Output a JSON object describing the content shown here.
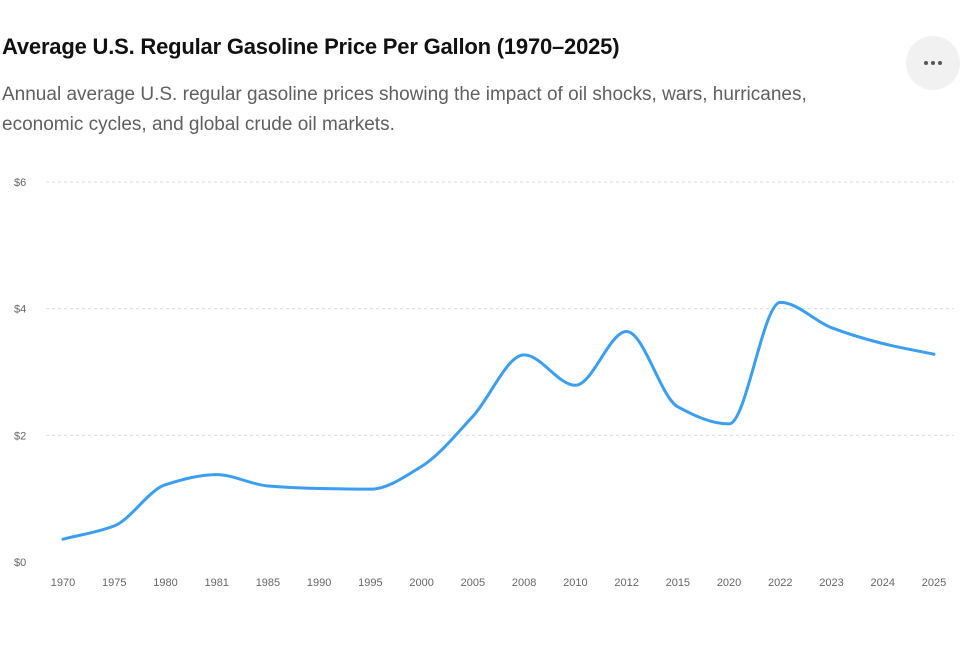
{
  "header": {
    "title": "Average U.S. Regular Gasoline Price Per Gallon (1970–2025)",
    "subtitle": "Annual average U.S. regular gasoline prices showing the impact of oil shocks, wars, hurricanes, economic cycles, and global crude oil markets.",
    "more_icon": "more-horizontal-icon"
  },
  "chart_data": {
    "type": "line",
    "categories": [
      "1970",
      "1975",
      "1980",
      "1981",
      "1985",
      "1990",
      "1995",
      "2000",
      "2005",
      "2008",
      "2010",
      "2012",
      "2015",
      "2020",
      "2022",
      "2023",
      "2024",
      "2025"
    ],
    "series": [
      {
        "values": [
          0.36,
          0.57,
          1.22,
          1.38,
          1.2,
          1.16,
          1.15,
          1.51,
          2.3,
          3.27,
          2.79,
          3.64,
          2.45,
          2.18,
          4.1,
          3.7,
          3.45,
          3.28
        ],
        "color": "#3b9ef0"
      }
    ],
    "y_ticks": [
      "$0",
      "$2",
      "$4",
      "$6"
    ],
    "ylim": [
      0,
      6
    ],
    "grid": "horizontal dashed",
    "xlabel": "",
    "ylabel": ""
  }
}
